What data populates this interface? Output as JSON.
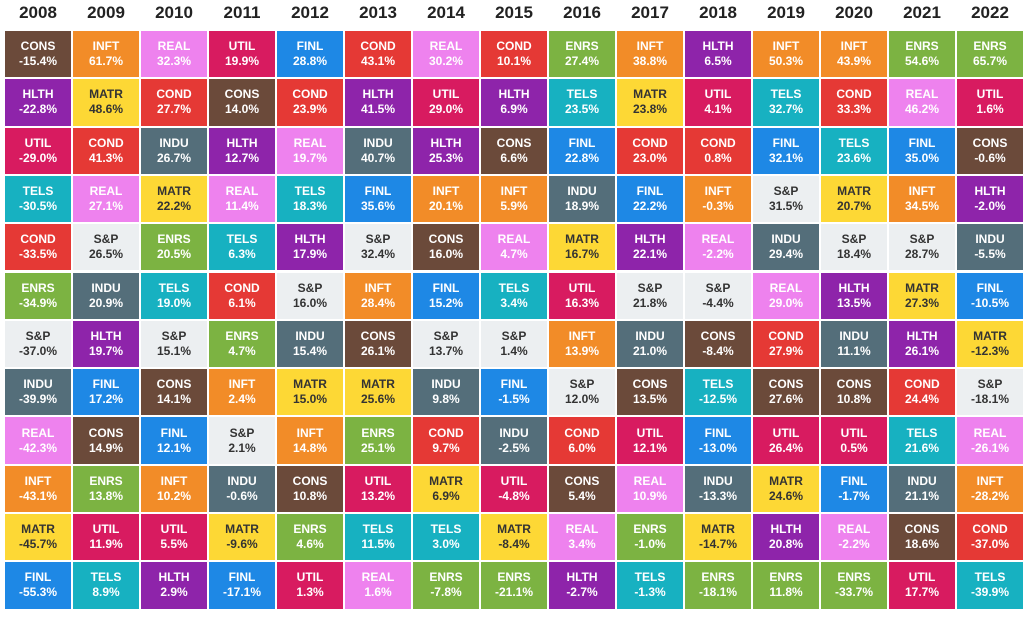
{
  "chart_data": {
    "type": "table",
    "title": "",
    "years": [
      "2008",
      "2009",
      "2010",
      "2011",
      "2012",
      "2013",
      "2014",
      "2015",
      "2016",
      "2017",
      "2018",
      "2019",
      "2020",
      "2021",
      "2022"
    ],
    "sector_colors": {
      "CONS": "#6b4a3a",
      "INFT": "#f28c28",
      "REAL": "#ee82ee",
      "UTIL": "#d81b60",
      "FINL": "#1e88e5",
      "COND": "#e53935",
      "ENRS": "#7cb342",
      "HLTH": "#8e24aa",
      "MATR": "#fdd835",
      "TELS": "#17b1c1",
      "INDU": "#546e7a",
      "S&P": "#eceff1"
    },
    "columns": [
      [
        [
          "CONS",
          "-15.4%"
        ],
        [
          "HLTH",
          "-22.8%"
        ],
        [
          "UTIL",
          "-29.0%"
        ],
        [
          "TELS",
          "-30.5%"
        ],
        [
          "COND",
          "-33.5%"
        ],
        [
          "ENRS",
          "-34.9%"
        ],
        [
          "S&P",
          "-37.0%"
        ],
        [
          "INDU",
          "-39.9%"
        ],
        [
          "REAL",
          "-42.3%"
        ],
        [
          "INFT",
          "-43.1%"
        ],
        [
          "MATR",
          "-45.7%"
        ],
        [
          "FINL",
          "-55.3%"
        ]
      ],
      [
        [
          "INFT",
          "61.7%"
        ],
        [
          "MATR",
          "48.6%"
        ],
        [
          "COND",
          "41.3%"
        ],
        [
          "REAL",
          "27.1%"
        ],
        [
          "S&P",
          "26.5%"
        ],
        [
          "INDU",
          "20.9%"
        ],
        [
          "HLTH",
          "19.7%"
        ],
        [
          "FINL",
          "17.2%"
        ],
        [
          "CONS",
          "14.9%"
        ],
        [
          "ENRS",
          "13.8%"
        ],
        [
          "UTIL",
          "11.9%"
        ],
        [
          "TELS",
          "8.9%"
        ]
      ],
      [
        [
          "REAL",
          "32.3%"
        ],
        [
          "COND",
          "27.7%"
        ],
        [
          "INDU",
          "26.7%"
        ],
        [
          "MATR",
          "22.2%"
        ],
        [
          "ENRS",
          "20.5%"
        ],
        [
          "TELS",
          "19.0%"
        ],
        [
          "S&P",
          "15.1%"
        ],
        [
          "CONS",
          "14.1%"
        ],
        [
          "FINL",
          "12.1%"
        ],
        [
          "INFT",
          "10.2%"
        ],
        [
          "UTIL",
          "5.5%"
        ],
        [
          "HLTH",
          "2.9%"
        ]
      ],
      [
        [
          "UTIL",
          "19.9%"
        ],
        [
          "CONS",
          "14.0%"
        ],
        [
          "HLTH",
          "12.7%"
        ],
        [
          "REAL",
          "11.4%"
        ],
        [
          "TELS",
          "6.3%"
        ],
        [
          "COND",
          "6.1%"
        ],
        [
          "ENRS",
          "4.7%"
        ],
        [
          "INFT",
          "2.4%"
        ],
        [
          "S&P",
          "2.1%"
        ],
        [
          "INDU",
          "-0.6%"
        ],
        [
          "MATR",
          "-9.6%"
        ],
        [
          "FINL",
          "-17.1%"
        ]
      ],
      [
        [
          "FINL",
          "28.8%"
        ],
        [
          "COND",
          "23.9%"
        ],
        [
          "REAL",
          "19.7%"
        ],
        [
          "TELS",
          "18.3%"
        ],
        [
          "HLTH",
          "17.9%"
        ],
        [
          "S&P",
          "16.0%"
        ],
        [
          "INDU",
          "15.4%"
        ],
        [
          "MATR",
          "15.0%"
        ],
        [
          "INFT",
          "14.8%"
        ],
        [
          "CONS",
          "10.8%"
        ],
        [
          "ENRS",
          "4.6%"
        ],
        [
          "UTIL",
          "1.3%"
        ]
      ],
      [
        [
          "COND",
          "43.1%"
        ],
        [
          "HLTH",
          "41.5%"
        ],
        [
          "INDU",
          "40.7%"
        ],
        [
          "FINL",
          "35.6%"
        ],
        [
          "S&P",
          "32.4%"
        ],
        [
          "INFT",
          "28.4%"
        ],
        [
          "CONS",
          "26.1%"
        ],
        [
          "MATR",
          "25.6%"
        ],
        [
          "ENRS",
          "25.1%"
        ],
        [
          "UTIL",
          "13.2%"
        ],
        [
          "TELS",
          "11.5%"
        ],
        [
          "REAL",
          "1.6%"
        ]
      ],
      [
        [
          "REAL",
          "30.2%"
        ],
        [
          "UTIL",
          "29.0%"
        ],
        [
          "HLTH",
          "25.3%"
        ],
        [
          "INFT",
          "20.1%"
        ],
        [
          "CONS",
          "16.0%"
        ],
        [
          "FINL",
          "15.2%"
        ],
        [
          "S&P",
          "13.7%"
        ],
        [
          "INDU",
          "9.8%"
        ],
        [
          "COND",
          "9.7%"
        ],
        [
          "MATR",
          "6.9%"
        ],
        [
          "TELS",
          "3.0%"
        ],
        [
          "ENRS",
          "-7.8%"
        ]
      ],
      [
        [
          "COND",
          "10.1%"
        ],
        [
          "HLTH",
          "6.9%"
        ],
        [
          "CONS",
          "6.6%"
        ],
        [
          "INFT",
          "5.9%"
        ],
        [
          "REAL",
          "4.7%"
        ],
        [
          "TELS",
          "3.4%"
        ],
        [
          "S&P",
          "1.4%"
        ],
        [
          "FINL",
          "-1.5%"
        ],
        [
          "INDU",
          "-2.5%"
        ],
        [
          "UTIL",
          "-4.8%"
        ],
        [
          "MATR",
          "-8.4%"
        ],
        [
          "ENRS",
          "-21.1%"
        ]
      ],
      [
        [
          "ENRS",
          "27.4%"
        ],
        [
          "TELS",
          "23.5%"
        ],
        [
          "FINL",
          "22.8%"
        ],
        [
          "INDU",
          "18.9%"
        ],
        [
          "MATR",
          "16.7%"
        ],
        [
          "UTIL",
          "16.3%"
        ],
        [
          "INFT",
          "13.9%"
        ],
        [
          "S&P",
          "12.0%"
        ],
        [
          "COND",
          "6.0%"
        ],
        [
          "CONS",
          "5.4%"
        ],
        [
          "REAL",
          "3.4%"
        ],
        [
          "HLTH",
          "-2.7%"
        ]
      ],
      [
        [
          "INFT",
          "38.8%"
        ],
        [
          "MATR",
          "23.8%"
        ],
        [
          "COND",
          "23.0%"
        ],
        [
          "FINL",
          "22.2%"
        ],
        [
          "HLTH",
          "22.1%"
        ],
        [
          "S&P",
          "21.8%"
        ],
        [
          "INDU",
          "21.0%"
        ],
        [
          "CONS",
          "13.5%"
        ],
        [
          "UTIL",
          "12.1%"
        ],
        [
          "REAL",
          "10.9%"
        ],
        [
          "ENRS",
          "-1.0%"
        ],
        [
          "TELS",
          "-1.3%"
        ]
      ],
      [
        [
          "HLTH",
          "6.5%"
        ],
        [
          "UTIL",
          "4.1%"
        ],
        [
          "COND",
          "0.8%"
        ],
        [
          "INFT",
          "-0.3%"
        ],
        [
          "REAL",
          "-2.2%"
        ],
        [
          "S&P",
          "-4.4%"
        ],
        [
          "CONS",
          "-8.4%"
        ],
        [
          "TELS",
          "-12.5%"
        ],
        [
          "FINL",
          "-13.0%"
        ],
        [
          "INDU",
          "-13.3%"
        ],
        [
          "MATR",
          "-14.7%"
        ],
        [
          "ENRS",
          "-18.1%"
        ]
      ],
      [
        [
          "INFT",
          "50.3%"
        ],
        [
          "TELS",
          "32.7%"
        ],
        [
          "FINL",
          "32.1%"
        ],
        [
          "S&P",
          "31.5%"
        ],
        [
          "INDU",
          "29.4%"
        ],
        [
          "REAL",
          "29.0%"
        ],
        [
          "COND",
          "27.9%"
        ],
        [
          "CONS",
          "27.6%"
        ],
        [
          "UTIL",
          "26.4%"
        ],
        [
          "MATR",
          "24.6%"
        ],
        [
          "HLTH",
          "20.8%"
        ],
        [
          "ENRS",
          "11.8%"
        ]
      ],
      [
        [
          "INFT",
          "43.9%"
        ],
        [
          "COND",
          "33.3%"
        ],
        [
          "TELS",
          "23.6%"
        ],
        [
          "MATR",
          "20.7%"
        ],
        [
          "S&P",
          "18.4%"
        ],
        [
          "HLTH",
          "13.5%"
        ],
        [
          "INDU",
          "11.1%"
        ],
        [
          "CONS",
          "10.8%"
        ],
        [
          "UTIL",
          "0.5%"
        ],
        [
          "FINL",
          "-1.7%"
        ],
        [
          "REAL",
          "-2.2%"
        ],
        [
          "ENRS",
          "-33.7%"
        ]
      ],
      [
        [
          "ENRS",
          "54.6%"
        ],
        [
          "REAL",
          "46.2%"
        ],
        [
          "FINL",
          "35.0%"
        ],
        [
          "INFT",
          "34.5%"
        ],
        [
          "S&P",
          "28.7%"
        ],
        [
          "MATR",
          "27.3%"
        ],
        [
          "HLTH",
          "26.1%"
        ],
        [
          "COND",
          "24.4%"
        ],
        [
          "TELS",
          "21.6%"
        ],
        [
          "INDU",
          "21.1%"
        ],
        [
          "CONS",
          "18.6%"
        ],
        [
          "UTIL",
          "17.7%"
        ]
      ],
      [
        [
          "ENRS",
          "65.7%"
        ],
        [
          "UTIL",
          "1.6%"
        ],
        [
          "CONS",
          "-0.6%"
        ],
        [
          "HLTH",
          "-2.0%"
        ],
        [
          "INDU",
          "-5.5%"
        ],
        [
          "FINL",
          "-10.5%"
        ],
        [
          "MATR",
          "-12.3%"
        ],
        [
          "S&P",
          "-18.1%"
        ],
        [
          "REAL",
          "-26.1%"
        ],
        [
          "INFT",
          "-28.2%"
        ],
        [
          "COND",
          "-37.0%"
        ],
        [
          "TELS",
          "-39.9%"
        ]
      ]
    ]
  }
}
